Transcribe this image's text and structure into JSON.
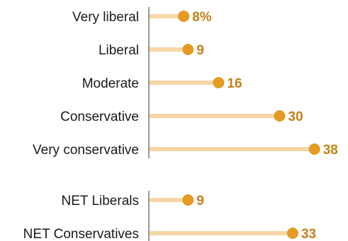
{
  "chart_data": {
    "type": "lollipop",
    "value_suffix_first": "%",
    "x_range": [
      0,
      40
    ],
    "grid": false,
    "legend": "none",
    "colors": {
      "stem": "#f6d6a6",
      "dot": "#e59a24",
      "value_text": "#c77f17",
      "axis": "#555555",
      "label_text": "#1a1a1a"
    },
    "groups": [
      {
        "rows": [
          {
            "category": "Very liberal",
            "value": 8,
            "label": "8%"
          },
          {
            "category": "Liberal",
            "value": 9,
            "label": "9"
          },
          {
            "category": "Moderate",
            "value": 16,
            "label": "16"
          },
          {
            "category": "Conservative",
            "value": 30,
            "label": "30"
          },
          {
            "category": "Very conservative",
            "value": 38,
            "label": "38"
          }
        ]
      },
      {
        "rows": [
          {
            "category": "NET Liberals",
            "value": 9,
            "label": "9"
          },
          {
            "category": "NET Conservatives",
            "value": 33,
            "label": "33"
          }
        ]
      }
    ]
  }
}
